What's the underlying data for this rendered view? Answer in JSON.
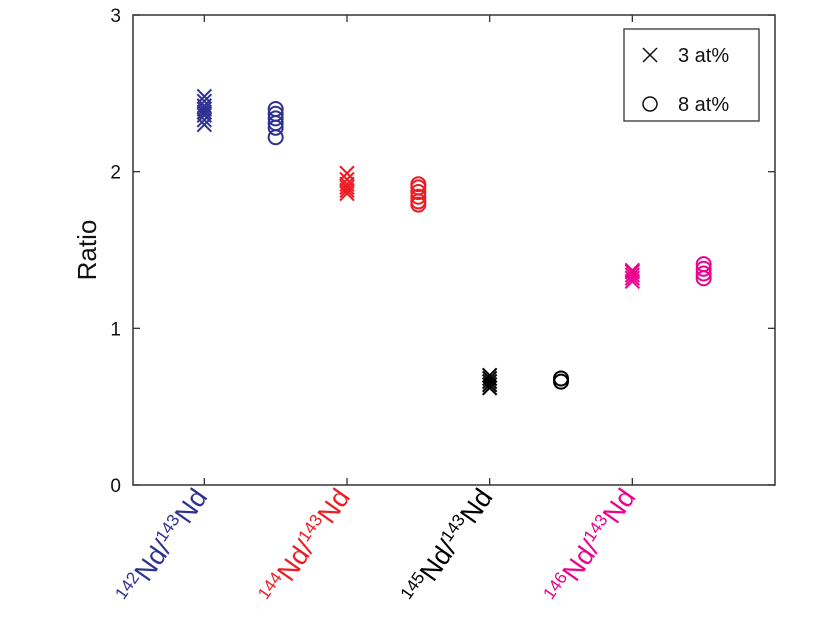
{
  "chart_data": {
    "type": "scatter",
    "ylabel": "Ratio",
    "xlabel": "",
    "ylim": [
      0,
      3
    ],
    "yticks": [
      "0",
      "1",
      "2",
      "3"
    ],
    "xlim": [
      0.5,
      5.0
    ],
    "grid": false,
    "legend_position": "top-right",
    "legend": [
      {
        "marker": "x",
        "label": "3 at%"
      },
      {
        "marker": "circle",
        "label": "8 at%"
      }
    ],
    "categories": [
      {
        "sup1": "142",
        "base1": "Nd/",
        "sup2": "143",
        "base2": "Nd",
        "color": "#2e3192"
      },
      {
        "sup1": "144",
        "base1": "Nd/",
        "sup2": "143",
        "base2": "Nd",
        "color": "#ed1c24"
      },
      {
        "sup1": "145",
        "base1": "Nd/",
        "sup2": "143",
        "base2": "Nd",
        "color": "#000000"
      },
      {
        "sup1": "146",
        "base1": "Nd/",
        "sup2": "143",
        "base2": "Nd",
        "color": "#ec008c"
      }
    ],
    "series": [
      {
        "name": "3 at%",
        "marker": "x",
        "x_offset": 0,
        "values": [
          [
            2.3,
            2.33,
            2.36,
            2.38,
            2.4,
            2.42,
            2.45,
            2.48
          ],
          [
            1.86,
            1.88,
            1.9,
            1.92,
            1.95,
            1.99
          ],
          [
            0.62,
            0.64,
            0.66,
            0.68,
            0.7
          ],
          [
            1.3,
            1.32,
            1.34,
            1.36,
            1.37
          ]
        ]
      },
      {
        "name": "8 at%",
        "marker": "circle",
        "x_offset": 0.5,
        "values": [
          [
            2.22,
            2.28,
            2.31,
            2.34,
            2.37,
            2.4
          ],
          [
            1.79,
            1.81,
            1.84,
            1.87,
            1.9,
            1.92
          ],
          [
            0.66,
            0.68
          ],
          [
            1.32,
            1.35,
            1.38,
            1.41
          ]
        ]
      }
    ]
  }
}
